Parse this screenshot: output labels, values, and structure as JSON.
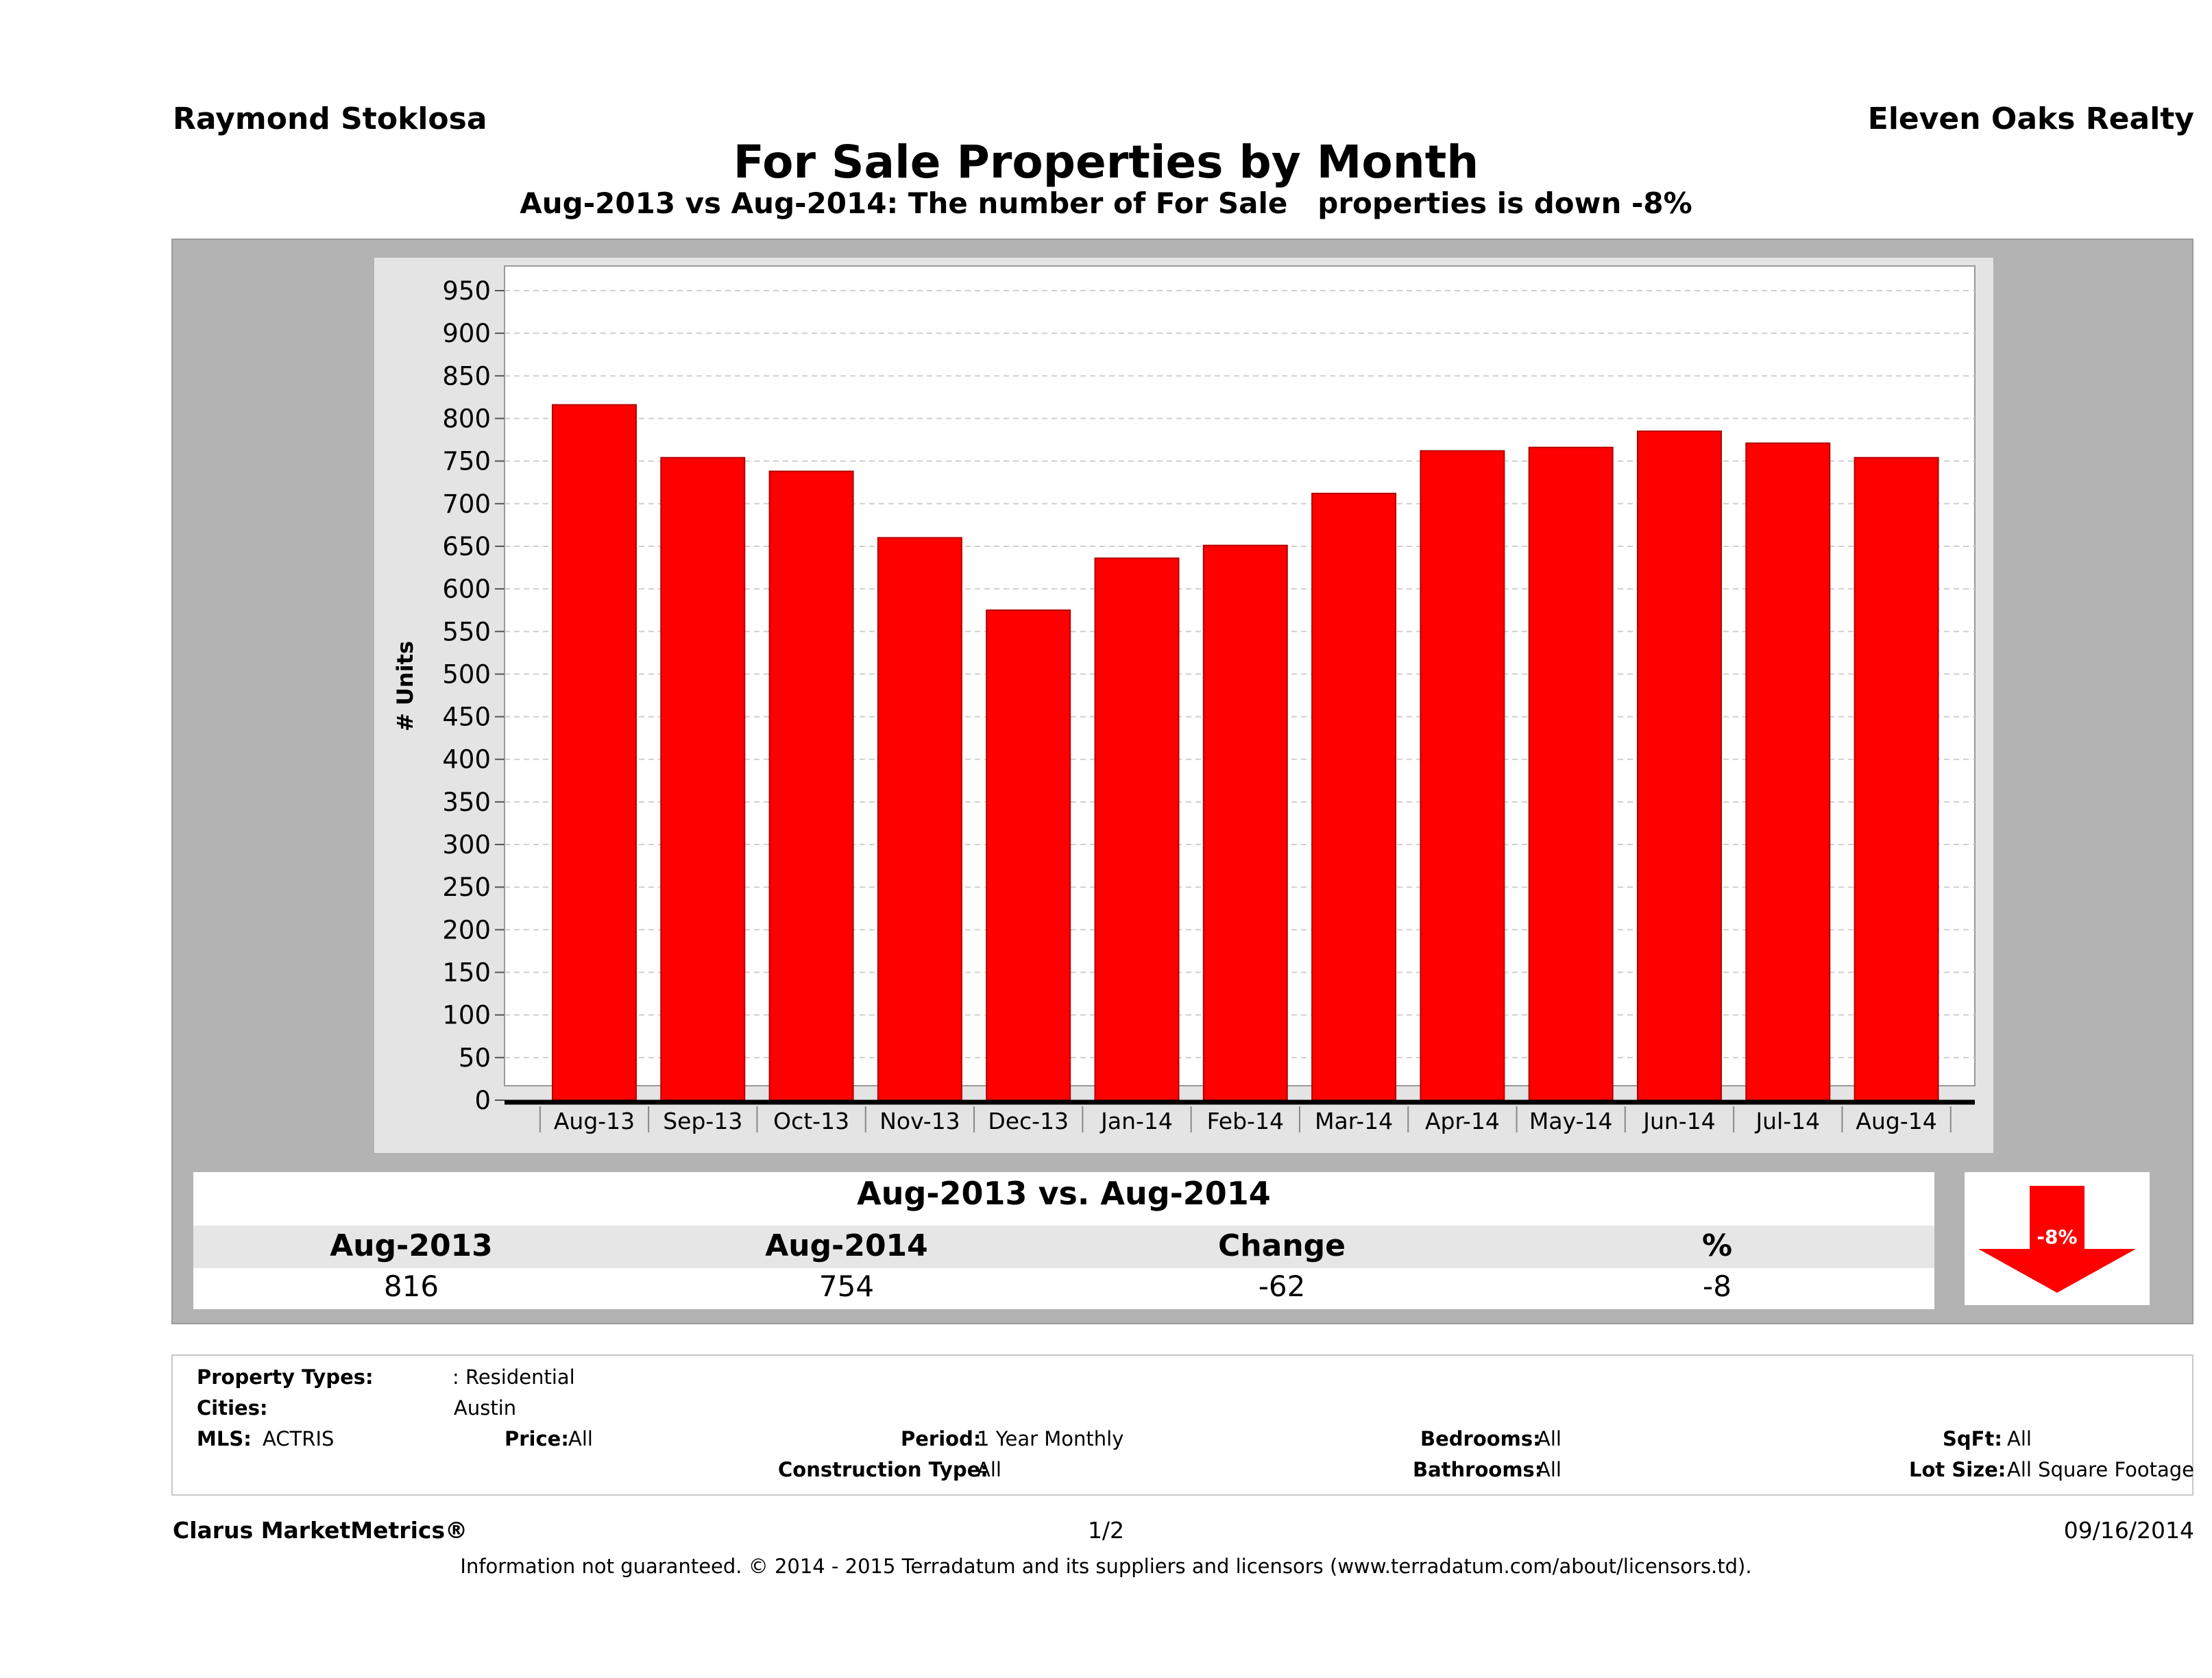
{
  "header": {
    "agent": "Raymond Stoklosa",
    "brokerage": "Eleven Oaks Realty"
  },
  "chart_data": {
    "type": "bar",
    "title": "For Sale Properties by Month",
    "subtitle": "Aug-2013 vs Aug-2014: The number of For Sale   properties is down -8%",
    "ylabel": "# Units",
    "xlabel": "",
    "ylim": [
      0,
      950
    ],
    "yticks": [
      0,
      50,
      100,
      150,
      200,
      250,
      300,
      350,
      400,
      450,
      500,
      550,
      600,
      650,
      700,
      750,
      800,
      850,
      900,
      950
    ],
    "grid": true,
    "categories": [
      "Aug-13",
      "Sep-13",
      "Oct-13",
      "Nov-13",
      "Dec-13",
      "Jan-14",
      "Feb-14",
      "Mar-14",
      "Apr-14",
      "May-14",
      "Jun-14",
      "Jul-14",
      "Aug-14"
    ],
    "values": [
      816,
      754,
      738,
      660,
      575,
      636,
      651,
      712,
      762,
      766,
      785,
      771,
      754
    ],
    "bar_color": "#ff0000"
  },
  "summary": {
    "title": "Aug-2013 vs. Aug-2014",
    "columns": [
      "Aug-2013",
      "Aug-2014",
      "Change",
      "%"
    ],
    "values": [
      "816",
      "754",
      "-62",
      "-8"
    ],
    "arrow_label": "-8%"
  },
  "filters": {
    "property_types_label": "Property Types:",
    "property_types_value": ": Residential",
    "cities_label": "Cities:",
    "cities_value": "Austin",
    "mls_label": "MLS:",
    "mls_value": "ACTRIS",
    "price_label": "Price:",
    "price_value": "All",
    "period_label": "Period:",
    "period_value": "1 Year Monthly",
    "construction_label": "Construction Type:",
    "construction_value": "All",
    "bedrooms_label": "Bedrooms:",
    "bedrooms_value": "All",
    "bathrooms_label": "Bathrooms:",
    "bathrooms_value": "All",
    "sqft_label": "SqFt:",
    "sqft_value": "All",
    "lot_label": "Lot Size:",
    "lot_value": "All Square Footage"
  },
  "footer": {
    "brand": "Clarus MarketMetrics®",
    "page": "1/2",
    "date": "09/16/2014",
    "disclaimer": "Information not guaranteed. © 2014 - 2015 Terradatum and its suppliers and licensors (www.terradatum.com/about/licensors.td)."
  }
}
